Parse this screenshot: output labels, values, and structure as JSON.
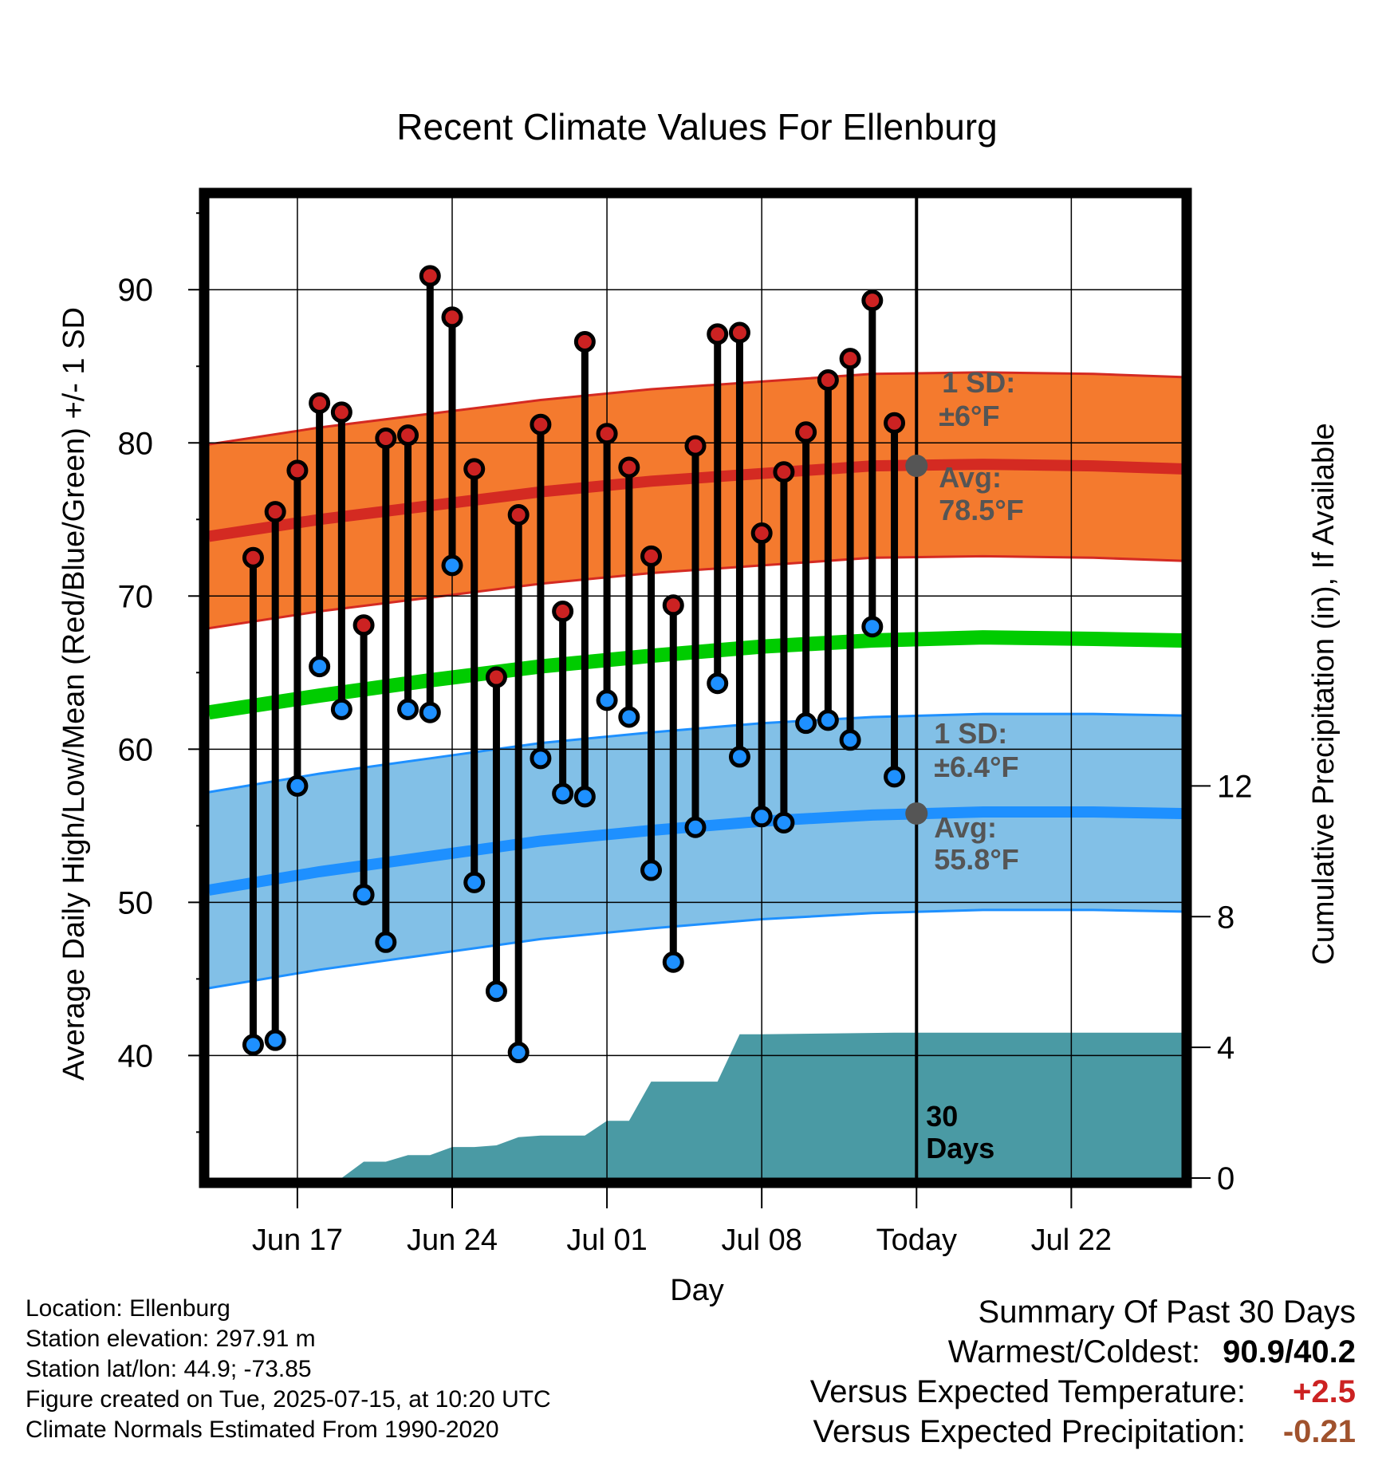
{
  "chart_data": {
    "type": "line",
    "title": "Recent Climate Values For Ellenburg",
    "xlabel": "Day",
    "ylabel_left": "Average Daily High/Low/Mean (Red/Blue/Green) +/- 1 SD",
    "ylabel_right": "Cumulative Precipitation (in), If Available",
    "x_range": [
      "2025-06-13",
      "2025-07-27"
    ],
    "y_left_range": [
      32,
      96
    ],
    "y_right_range": [
      0,
      30
    ],
    "left_ticks": [
      40,
      50,
      60,
      70,
      80,
      90
    ],
    "right_ticks": [
      0,
      4,
      8,
      12
    ],
    "x_ticks": [
      {
        "date": "2025-06-17",
        "label": "Jun 17"
      },
      {
        "date": "2025-06-24",
        "label": "Jun 24"
      },
      {
        "date": "2025-07-01",
        "label": "Jul 01"
      },
      {
        "date": "2025-07-08",
        "label": "Jul 08"
      },
      {
        "date": "2025-07-15",
        "label": "Today"
      },
      {
        "date": "2025-07-22",
        "label": "Jul 22"
      }
    ],
    "grid": true,
    "colors": {
      "high_band": "#f47a2e",
      "high_line": "#d42a22",
      "low_band": "#82c0e7",
      "low_line": "#1e90ff",
      "mean_line": "#00cc00",
      "precip": "#4a9aa4",
      "high_marker": "#cc2222",
      "low_marker": "#1e90ff",
      "today_line": "#000000",
      "annotation": "#555555",
      "temp_anomaly": "#cc2222",
      "precip_anomaly": "#a0522d"
    },
    "daily_obs": {
      "dates": [
        "2025-06-15",
        "2025-06-16",
        "2025-06-17",
        "2025-06-18",
        "2025-06-19",
        "2025-06-20",
        "2025-06-21",
        "2025-06-22",
        "2025-06-23",
        "2025-06-24",
        "2025-06-25",
        "2025-06-26",
        "2025-06-27",
        "2025-06-28",
        "2025-06-29",
        "2025-06-30",
        "2025-07-01",
        "2025-07-02",
        "2025-07-03",
        "2025-07-04",
        "2025-07-05",
        "2025-07-06",
        "2025-07-07",
        "2025-07-08",
        "2025-07-09",
        "2025-07-10",
        "2025-07-11",
        "2025-07-12",
        "2025-07-13",
        "2025-07-14"
      ],
      "high": [
        72.5,
        75.5,
        78.2,
        82.6,
        82.0,
        68.1,
        80.3,
        80.5,
        90.9,
        88.2,
        78.3,
        64.7,
        75.3,
        81.2,
        69.0,
        86.6,
        80.6,
        78.4,
        72.6,
        69.4,
        79.8,
        87.1,
        87.2,
        74.1,
        78.1,
        80.7,
        84.1,
        85.5,
        89.3,
        81.3
      ],
      "low": [
        40.7,
        41.0,
        57.6,
        65.4,
        62.6,
        50.5,
        47.4,
        62.6,
        62.4,
        72.0,
        51.3,
        44.2,
        40.2,
        59.4,
        57.1,
        56.9,
        63.2,
        62.1,
        52.1,
        46.1,
        54.9,
        64.3,
        59.5,
        55.6,
        55.2,
        61.7,
        61.9,
        60.6,
        68.0,
        58.2
      ]
    },
    "normals": {
      "dates": [
        "2025-06-13",
        "2025-06-18",
        "2025-06-23",
        "2025-06-28",
        "2025-07-03",
        "2025-07-08",
        "2025-07-13",
        "2025-07-18",
        "2025-07-23",
        "2025-07-27"
      ],
      "avg_high": [
        73.9,
        75.0,
        75.9,
        76.8,
        77.5,
        78.0,
        78.5,
        78.6,
        78.5,
        78.3
      ],
      "avg_low": [
        50.8,
        52.0,
        53.0,
        54.0,
        54.7,
        55.3,
        55.7,
        55.9,
        55.9,
        55.8
      ],
      "avg_mean": [
        62.4,
        63.5,
        64.5,
        65.4,
        66.1,
        66.7,
        67.1,
        67.3,
        67.2,
        67.1
      ],
      "high_sd": 6.0,
      "low_sd": 6.4
    },
    "precip_cumulative": {
      "dates": [
        "2025-06-19",
        "2025-06-20",
        "2025-06-21",
        "2025-06-22",
        "2025-06-23",
        "2025-06-24",
        "2025-06-25",
        "2025-06-26",
        "2025-06-27",
        "2025-06-28",
        "2025-06-29",
        "2025-06-30",
        "2025-07-01",
        "2025-07-02",
        "2025-07-03",
        "2025-07-04",
        "2025-07-05",
        "2025-07-06",
        "2025-07-07",
        "2025-07-08",
        "2025-07-14",
        "2025-07-27"
      ],
      "values": [
        0.0,
        0.5,
        0.5,
        0.7,
        0.7,
        0.95,
        0.95,
        1.0,
        1.25,
        1.3,
        1.3,
        1.3,
        1.75,
        1.75,
        2.95,
        2.95,
        2.95,
        2.95,
        4.4,
        4.4,
        4.45,
        4.45
      ]
    },
    "annotations": {
      "high_sd_label": "1 SD:",
      "high_sd_value": "±6°F",
      "high_avg_label": "Avg:",
      "high_avg_value": "78.5°F",
      "low_sd_label": "1 SD:",
      "low_sd_value": "±6.4°F",
      "low_avg_label": "Avg:",
      "low_avg_value": "55.8°F",
      "days_line1": "30",
      "days_line2": "Days"
    }
  },
  "footer": {
    "location": "Location: Ellenburg",
    "elevation": "Station elevation: 297.91 m",
    "latlon": "Station lat/lon: 44.9; -73.85",
    "created": "Figure created on Tue, 2025-07-15, at 10:20 UTC",
    "normals": "Climate Normals Estimated From 1990-2020"
  },
  "summary": {
    "heading": "Summary Of Past 30 Days",
    "warm_cold_label": "Warmest/Coldest:",
    "warm_cold_value": "90.9/40.2",
    "temp_label": "Versus Expected Temperature:",
    "temp_value": "+2.5",
    "precip_label": "Versus Expected Precipitation:",
    "precip_value": "-0.21"
  }
}
